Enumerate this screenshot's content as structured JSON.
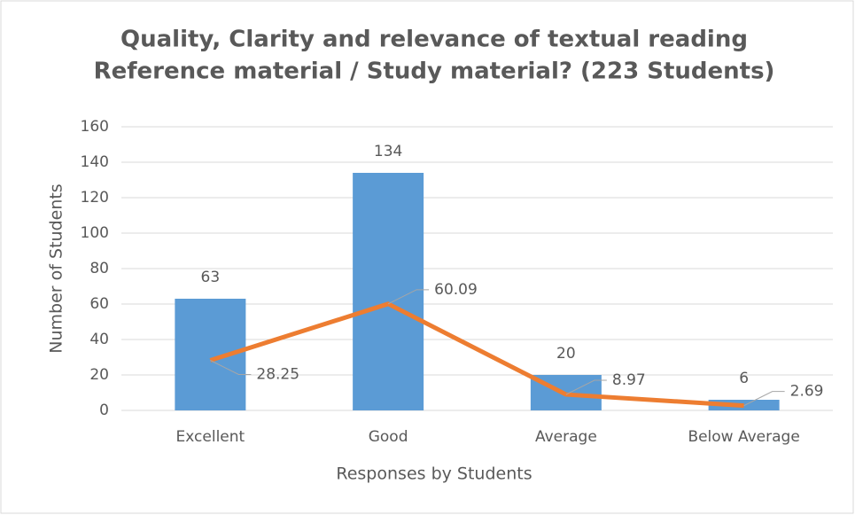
{
  "chart_data": {
    "type": "combo",
    "title": [
      "Quality, Clarity and relevance of textual reading",
      "Reference material / Study material? (223 Students)"
    ],
    "x_label": "Responses by Students",
    "y_label": "Number of Students",
    "categories": [
      "Excellent",
      "Good",
      "Average",
      "Below Average"
    ],
    "series": [
      {
        "type": "bar",
        "color": "#5b9bd5",
        "values": [
          63,
          134,
          20,
          6
        ]
      },
      {
        "type": "line",
        "color": "#ed7d31",
        "values": [
          28.25,
          60.09,
          8.97,
          2.69
        ]
      }
    ],
    "ylim": [
      0,
      160
    ],
    "yticks": [
      0,
      20,
      40,
      60,
      80,
      100,
      120,
      140,
      160
    ],
    "grid": true
  }
}
